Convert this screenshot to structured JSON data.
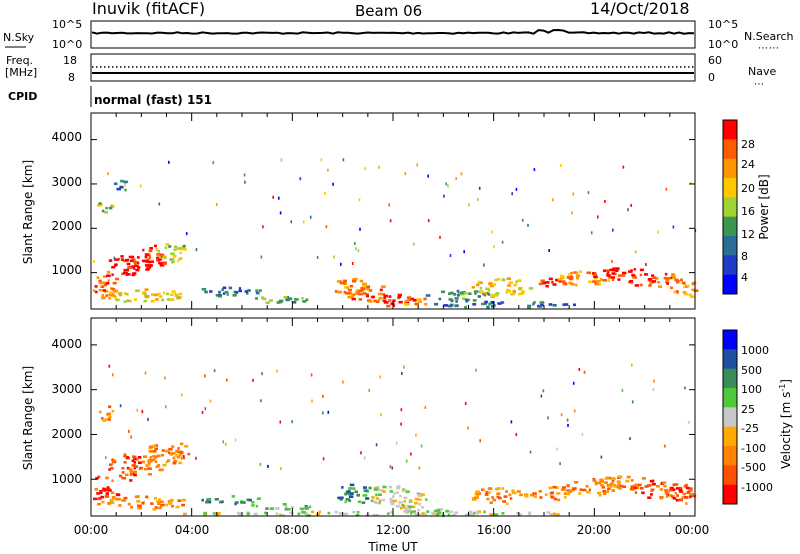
{
  "header": {
    "station": "Inuvik (fitACF)",
    "beam": "Beam 06",
    "date": "14/Oct/2018"
  },
  "noise_panel": {
    "left_label": "N.Sky",
    "right_label": "N.Search",
    "left_ticks": [
      "10^5",
      "10^0"
    ],
    "right_ticks": [
      "10^5",
      "10^0"
    ]
  },
  "freq_panel": {
    "left_label_line1": "Freq.",
    "left_label_line2": "[MHz]",
    "right_label": "Nave",
    "left_ticks": [
      "18",
      "8"
    ],
    "right_ticks": [
      "60",
      "0"
    ]
  },
  "cpid": {
    "label": "CPID",
    "mode": "normal (fast) 151"
  },
  "colorbars": {
    "power": {
      "label": "Power [dB]",
      "ticks": [
        "28",
        "24",
        "20",
        "16",
        "12",
        "8",
        "4"
      ],
      "colors": [
        "#ff0000",
        "#ff5a00",
        "#ff9600",
        "#ffc800",
        "#a0d232",
        "#3c9650",
        "#286e96",
        "#1e3cc8",
        "#0000ff"
      ]
    },
    "velocity": {
      "label_main": "Velocity [m s",
      "label_sup": "-1",
      "label_end": "]",
      "ticks": [
        "1000",
        "500",
        "100",
        "25",
        "-25",
        "-100",
        "-500",
        "-1000"
      ],
      "colors": [
        "#0000ff",
        "#1e50a0",
        "#3c8c5a",
        "#50c83c",
        "#c8c8c8",
        "#ffaa00",
        "#ff8200",
        "#ff5000",
        "#ff0000"
      ]
    }
  },
  "chart_data": [
    {
      "type": "heatmap",
      "name": "power",
      "ylabel": "Slant Range [km]",
      "yticks": [
        "1000",
        "2000",
        "3000",
        "4000"
      ],
      "ylim": [
        180,
        4600
      ],
      "xlim": [
        "00:00",
        "24:00"
      ],
      "blobs": [
        {
          "t": 0.5,
          "r": 800,
          "dt": 0.55,
          "dr": 300,
          "lvl": 7
        },
        {
          "t": 1.5,
          "r": 1250,
          "dt": 0.9,
          "dr": 280,
          "lvl": 8
        },
        {
          "t": 2.5,
          "r": 1400,
          "dt": 0.6,
          "dr": 250,
          "lvl": 8
        },
        {
          "t": 3.2,
          "r": 1500,
          "dt": 0.6,
          "dr": 240,
          "lvl": 4
        },
        {
          "t": 0.5,
          "r": 2500,
          "dt": 0.3,
          "dr": 200,
          "lvl": 4
        },
        {
          "t": 1.2,
          "r": 3000,
          "dt": 0.3,
          "dr": 150,
          "lvl": 2
        },
        {
          "t": 2.0,
          "r": 500,
          "dt": 1.8,
          "dr": 150,
          "lvl": 5
        },
        {
          "t": 5.5,
          "r": 600,
          "dt": 1.3,
          "dr": 110,
          "lvl": 2
        },
        {
          "t": 7.5,
          "r": 420,
          "dt": 1.2,
          "dr": 90,
          "lvl": 3
        },
        {
          "t": 10.3,
          "r": 680,
          "dt": 0.8,
          "dr": 220,
          "lvl": 6
        },
        {
          "t": 11.0,
          "r": 560,
          "dt": 0.9,
          "dr": 200,
          "lvl": 7
        },
        {
          "t": 12.0,
          "r": 400,
          "dt": 0.8,
          "dr": 140,
          "lvl": 8
        },
        {
          "t": 12.8,
          "r": 380,
          "dt": 0.6,
          "dr": 110,
          "lvl": 6
        },
        {
          "t": 14.5,
          "r": 500,
          "dt": 1.5,
          "dr": 140,
          "lvl": 3
        },
        {
          "t": 16.3,
          "r": 700,
          "dt": 1.2,
          "dr": 200,
          "lvl": 5
        },
        {
          "t": 18.2,
          "r": 800,
          "dt": 0.6,
          "dr": 120,
          "lvl": 8
        },
        {
          "t": 19.5,
          "r": 900,
          "dt": 1.2,
          "dr": 170,
          "lvl": 6
        },
        {
          "t": 21.0,
          "r": 1000,
          "dt": 1.2,
          "dr": 140,
          "lvl": 8
        },
        {
          "t": 22.5,
          "r": 850,
          "dt": 1.2,
          "dr": 170,
          "lvl": 7
        },
        {
          "t": 23.6,
          "r": 650,
          "dt": 0.6,
          "dr": 190,
          "lvl": 6
        },
        {
          "t": 16.5,
          "r": 300,
          "dt": 3.0,
          "dr": 70,
          "lvl": 2
        }
      ]
    },
    {
      "type": "heatmap",
      "name": "velocity",
      "ylabel": "Slant Range [km]",
      "yticks": [
        "1000",
        "2000",
        "3000",
        "4000"
      ],
      "ylim": [
        180,
        4600
      ],
      "xlim": [
        "00:00",
        "24:00"
      ],
      "xlabel": "Time UT",
      "xticks": [
        "00:00",
        "04:00",
        "08:00",
        "12:00",
        "16:00",
        "20:00",
        "00:00"
      ],
      "blobs": [
        {
          "t": 0.5,
          "r": 800,
          "dt": 0.55,
          "dr": 330,
          "lvl": 7
        },
        {
          "t": 1.5,
          "r": 1300,
          "dt": 0.9,
          "dr": 300,
          "lvl": 7
        },
        {
          "t": 2.6,
          "r": 1500,
          "dt": 0.7,
          "dr": 290,
          "lvl": 6
        },
        {
          "t": 3.4,
          "r": 1600,
          "dt": 0.5,
          "dr": 230,
          "lvl": 6
        },
        {
          "t": 0.6,
          "r": 2500,
          "dt": 0.3,
          "dr": 200,
          "lvl": 6
        },
        {
          "t": 2.0,
          "r": 500,
          "dt": 1.8,
          "dr": 150,
          "lvl": 6
        },
        {
          "t": 5.5,
          "r": 560,
          "dt": 1.3,
          "dr": 90,
          "lvl": 2
        },
        {
          "t": 7.5,
          "r": 420,
          "dt": 1.2,
          "dr": 80,
          "lvl": 3
        },
        {
          "t": 10.4,
          "r": 700,
          "dt": 0.8,
          "dr": 220,
          "lvl": 2
        },
        {
          "t": 11.8,
          "r": 650,
          "dt": 0.8,
          "dr": 260,
          "lvl": 4
        },
        {
          "t": 12.8,
          "r": 500,
          "dt": 0.7,
          "dr": 220,
          "lvl": 4
        },
        {
          "t": 13.6,
          "r": 300,
          "dt": 2.0,
          "dr": 80,
          "lvl": 4
        },
        {
          "t": 16.2,
          "r": 650,
          "dt": 1.2,
          "dr": 190,
          "lvl": 6
        },
        {
          "t": 18.2,
          "r": 700,
          "dt": 0.8,
          "dr": 160,
          "lvl": 6
        },
        {
          "t": 19.8,
          "r": 850,
          "dt": 1.2,
          "dr": 190,
          "lvl": 6
        },
        {
          "t": 21.2,
          "r": 950,
          "dt": 1.2,
          "dr": 170,
          "lvl": 6
        },
        {
          "t": 22.6,
          "r": 800,
          "dt": 1.2,
          "dr": 210,
          "lvl": 7
        },
        {
          "t": 23.6,
          "r": 650,
          "dt": 0.6,
          "dr": 200,
          "lvl": 7
        },
        {
          "t": 11.5,
          "r": 260,
          "dt": 8.0,
          "dr": 50,
          "lvl": 4
        }
      ]
    }
  ]
}
